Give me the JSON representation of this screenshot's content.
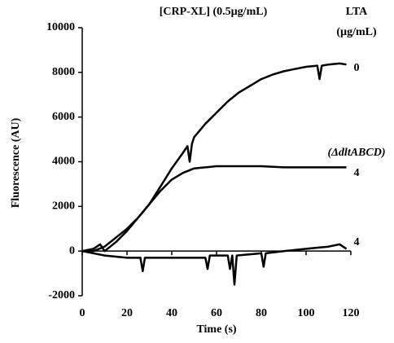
{
  "chart_data": {
    "type": "line",
    "title": "[CRP-XL] (0.5µg/mL)",
    "legend_title": [
      "LTA",
      "(µg/mL)"
    ],
    "xlabel": "Time (s)",
    "ylabel": "Fluorescence (AU)",
    "xlim": [
      0,
      120
    ],
    "xticks": [
      0,
      20,
      40,
      60,
      80,
      100,
      120
    ],
    "ylim": [
      -2000,
      10000
    ],
    "yticks": [
      -2000,
      0,
      2000,
      4000,
      6000,
      8000,
      10000
    ],
    "annotations": [
      "0",
      "(ΔdltABCD)",
      "4",
      "4"
    ],
    "series": [
      {
        "color": "#000000",
        "x": [
          0,
          5,
          10,
          15,
          20,
          25,
          30,
          35,
          40,
          45,
          47,
          48,
          49,
          50,
          55,
          60,
          65,
          70,
          75,
          80,
          85,
          90,
          95,
          100,
          105,
          106,
          107,
          110,
          115,
          118
        ],
        "values": [
          0,
          0,
          200,
          600,
          1000,
          1500,
          2100,
          2900,
          3700,
          4400,
          4700,
          4000,
          4800,
          5100,
          5700,
          6200,
          6700,
          7100,
          7400,
          7700,
          7900,
          8050,
          8150,
          8250,
          8300,
          7700,
          8300,
          8350,
          8400,
          8350
        ]
      },
      {
        "color": "#000000",
        "x": [
          0,
          5,
          8,
          10,
          15,
          20,
          25,
          30,
          35,
          40,
          45,
          50,
          55,
          60,
          70,
          80,
          90,
          100,
          110,
          118
        ],
        "values": [
          0,
          100,
          300,
          0,
          400,
          900,
          1500,
          2100,
          2700,
          3200,
          3500,
          3700,
          3750,
          3800,
          3800,
          3800,
          3750,
          3750,
          3750,
          3750
        ]
      },
      {
        "color": "#000000",
        "x": [
          0,
          10,
          20,
          26,
          27,
          28,
          40,
          55,
          56,
          57,
          65,
          66,
          67,
          68,
          69,
          80,
          81,
          82,
          90,
          100,
          110,
          115,
          118
        ],
        "values": [
          0,
          -200,
          -300,
          -300,
          -900,
          -300,
          -300,
          -300,
          -800,
          -200,
          -200,
          -800,
          -200,
          -1500,
          -200,
          -100,
          -700,
          -100,
          0,
          100,
          200,
          300,
          100
        ]
      }
    ]
  }
}
